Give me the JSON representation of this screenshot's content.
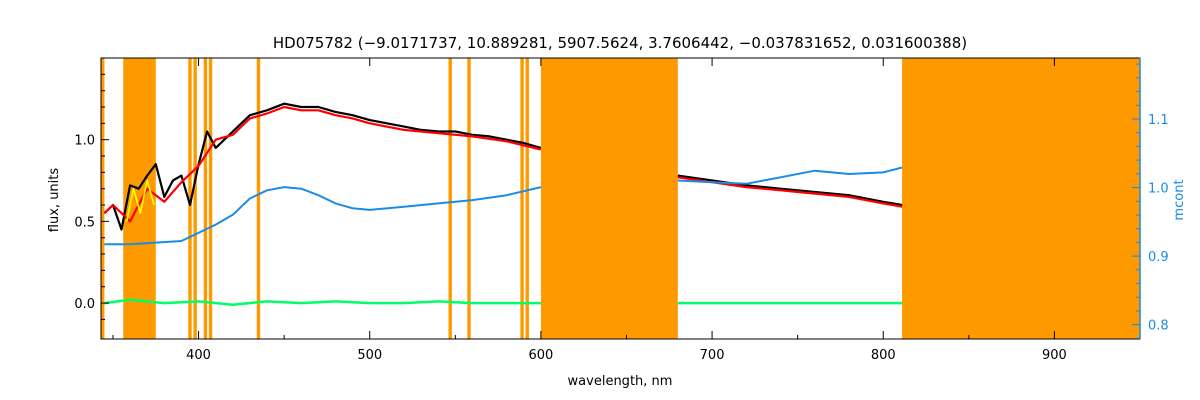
{
  "chart_data": {
    "type": "line",
    "title": "HD075782    (−9.0171737, 10.889281, 5907.5624, 3.7606442, −0.037831652, 0.031600388)",
    "xlabel": "wavelength, nm",
    "ylabel": "flux, units",
    "y2label": "mcont",
    "xlim": [
      343,
      950
    ],
    "ylim": [
      -0.22,
      1.5
    ],
    "y2lim": [
      0.779,
      1.189
    ],
    "x_ticks": [
      400,
      500,
      600,
      700,
      800,
      900
    ],
    "y_ticks": [
      0.0,
      0.5,
      1.0
    ],
    "y2_ticks": [
      0.8,
      0.9,
      1.0,
      1.1
    ],
    "x_tick_labels": [
      "400",
      "500",
      "600",
      "700",
      "800",
      "900"
    ],
    "y_tick_labels": [
      "0.0",
      "0.5",
      "1.0"
    ],
    "y2_tick_labels": [
      "0.8",
      "0.9",
      "1.0",
      "1.1"
    ],
    "grid": false,
    "legend": "none",
    "masked_regions": [
      [
        343,
        345
      ],
      [
        356,
        375
      ],
      [
        394,
        396
      ],
      [
        397,
        399
      ],
      [
        403,
        405
      ],
      [
        406,
        408
      ],
      [
        434,
        436
      ],
      [
        546,
        548
      ],
      [
        557,
        559
      ],
      [
        588,
        590
      ],
      [
        591,
        593
      ],
      [
        600,
        680
      ],
      [
        811,
        950
      ]
    ],
    "series": [
      {
        "x": [
          345,
          350,
          355,
          360,
          365,
          370,
          375,
          380,
          385,
          390,
          395,
          400,
          405,
          410,
          420,
          430,
          440,
          450,
          460,
          470,
          480,
          490,
          500,
          510,
          520,
          530,
          540,
          550,
          560,
          570,
          580,
          590,
          600
        ],
        "y": [
          0.55,
          0.6,
          0.45,
          0.72,
          0.7,
          0.78,
          0.85,
          0.65,
          0.75,
          0.78,
          0.6,
          0.85,
          1.05,
          0.95,
          1.05,
          1.15,
          1.18,
          1.22,
          1.2,
          1.2,
          1.17,
          1.15,
          1.12,
          1.1,
          1.08,
          1.06,
          1.05,
          1.05,
          1.03,
          1.02,
          1.0,
          0.98,
          0.95
        ]
      },
      {
        "x": [
          680,
          700,
          720,
          740,
          760,
          780,
          800,
          811
        ],
        "y": [
          0.78,
          0.75,
          0.72,
          0.7,
          0.68,
          0.66,
          0.62,
          0.6
        ]
      },
      {
        "x": [
          345,
          350,
          360,
          370,
          380,
          390,
          400,
          410,
          420,
          430,
          440,
          450,
          460,
          470,
          480,
          490,
          500,
          520,
          540,
          560,
          580,
          600
        ],
        "y": [
          0.55,
          0.6,
          0.5,
          0.7,
          0.62,
          0.74,
          0.84,
          1.0,
          1.03,
          1.13,
          1.16,
          1.2,
          1.18,
          1.18,
          1.15,
          1.13,
          1.1,
          1.06,
          1.04,
          1.02,
          0.99,
          0.94
        ]
      },
      {
        "x": [
          680,
          700,
          720,
          740,
          760,
          780,
          800,
          811
        ],
        "y": [
          0.77,
          0.74,
          0.71,
          0.69,
          0.67,
          0.65,
          0.61,
          0.59
        ]
      },
      {
        "x": [
          358,
          362,
          366,
          370,
          374
        ],
        "y": [
          0.5,
          0.7,
          0.55,
          0.75,
          0.6
        ]
      },
      {
        "x": [
          345,
          360,
          375,
          390,
          400,
          410,
          420,
          430,
          440,
          450,
          460,
          470,
          480,
          490,
          500,
          520,
          540,
          560,
          580,
          600
        ],
        "y": [
          0.36,
          0.36,
          0.37,
          0.38,
          0.43,
          0.48,
          0.54,
          0.64,
          0.69,
          0.71,
          0.7,
          0.66,
          0.61,
          0.58,
          0.57,
          0.59,
          0.61,
          0.63,
          0.66,
          0.71
        ]
      },
      {
        "x": [
          680,
          700,
          720,
          740,
          760,
          780,
          800,
          811
        ],
        "y": [
          0.75,
          0.74,
          0.73,
          0.77,
          0.81,
          0.79,
          0.8,
          0.83
        ]
      },
      {
        "x": [
          345,
          360,
          380,
          400,
          420,
          440,
          460,
          480,
          500,
          520,
          540,
          560,
          580,
          600
        ],
        "y": [
          0.0,
          0.02,
          0.0,
          0.01,
          -0.01,
          0.01,
          0.0,
          0.01,
          0.0,
          0.0,
          0.01,
          0.0,
          0.0,
          0.0
        ]
      },
      {
        "x": [
          680,
          700,
          720,
          740,
          760,
          780,
          800,
          811
        ],
        "y": [
          0.0,
          0.0,
          0.0,
          0.0,
          0.0,
          0.0,
          0.0,
          0.0
        ]
      }
    ],
    "colors": {
      "observed": "#000000",
      "model": "#ff0000",
      "highlight": "#ffff00",
      "continuum": "#1a8ce6",
      "residual": "#00ff66",
      "mask": "#ff9900",
      "right_axis": "#1a8ce6"
    }
  }
}
